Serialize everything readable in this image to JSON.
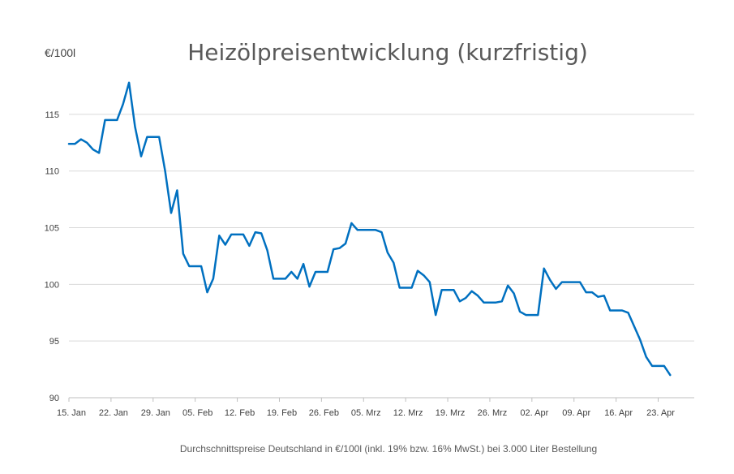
{
  "chart_data": {
    "type": "line",
    "title": "Heizölpreisentwicklung (kurzfristig)",
    "ylabel": "€/100l",
    "caption": "Durchschnittspreise Deutschland in €/100l (inkl. 19% bzw. 16%  MwSt.) bei 3.000 Liter Bestellung",
    "ylim": [
      90,
      118
    ],
    "yticks": [
      90,
      95,
      100,
      105,
      110,
      115
    ],
    "xticks": [
      "15. Jan",
      "22. Jan",
      "29. Jan",
      "05. Feb",
      "12. Feb",
      "19. Feb",
      "26. Feb",
      "05. Mrz",
      "12. Mrz",
      "19. Mrz",
      "26. Mrz",
      "02. Apr",
      "09. Apr",
      "16. Apr",
      "23. Apr"
    ],
    "grid": true,
    "line_color": "#0070C0",
    "series": [
      {
        "x": [
          0,
          1,
          2,
          3,
          4,
          5,
          6,
          7,
          8,
          9,
          10,
          11,
          12,
          13,
          14,
          15,
          16,
          17,
          18,
          19,
          20,
          21,
          22,
          23,
          24,
          25,
          26,
          27,
          28,
          29,
          30,
          31,
          32,
          33,
          34,
          35,
          36,
          37,
          38,
          39,
          40,
          41,
          42,
          43,
          44,
          45,
          46,
          47,
          48,
          49,
          50,
          51,
          52,
          53,
          54,
          55,
          56,
          57,
          58,
          59,
          60,
          61,
          62,
          63,
          64,
          65,
          66,
          67,
          68,
          69,
          70,
          71,
          72,
          73,
          74,
          75,
          76,
          77,
          78,
          79,
          80,
          81,
          82,
          83,
          84,
          85,
          86,
          87,
          88,
          89,
          90,
          91,
          92,
          93,
          94,
          95,
          96,
          97,
          98,
          99,
          100
        ],
        "values": [
          112.4,
          112.4,
          112.8,
          112.5,
          111.9,
          111.6,
          114.5,
          114.5,
          114.5,
          115.9,
          117.8,
          113.9,
          111.3,
          113.0,
          113.0,
          113.0,
          110.0,
          106.3,
          108.3,
          102.7,
          101.6,
          101.6,
          101.6,
          99.3,
          100.5,
          104.3,
          103.5,
          104.4,
          104.4,
          104.4,
          103.4,
          104.6,
          104.5,
          103.0,
          100.5,
          100.5,
          100.5,
          101.1,
          100.5,
          101.8,
          99.8,
          101.1,
          101.1,
          101.1,
          103.1,
          103.2,
          103.6,
          105.4,
          104.8,
          104.8,
          104.8,
          104.8,
          104.6,
          102.8,
          101.9,
          99.7,
          99.7,
          99.7,
          101.2,
          100.8,
          100.2,
          97.3,
          99.5,
          99.5,
          99.5,
          98.5,
          98.8,
          99.4,
          99.0,
          98.4,
          98.4,
          98.4,
          98.5,
          99.9,
          99.2,
          97.6,
          97.3,
          97.3,
          97.3,
          101.4,
          100.4,
          99.6,
          100.2,
          100.2,
          100.2,
          100.2,
          99.3,
          99.3,
          98.9,
          99.0,
          97.7,
          97.7,
          97.7,
          97.5,
          96.3,
          95.1,
          93.6,
          92.8,
          92.8,
          92.8,
          92.0
        ]
      }
    ]
  }
}
